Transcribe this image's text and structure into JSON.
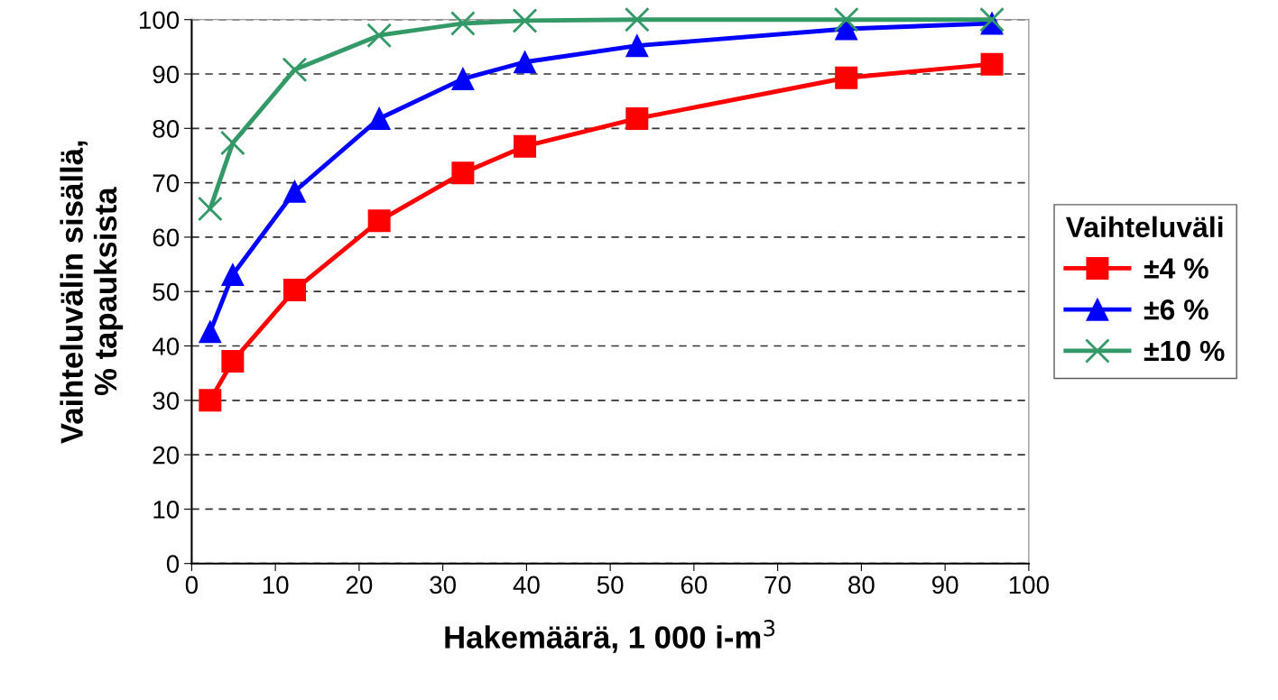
{
  "chart_data": {
    "type": "line",
    "xlabel": "Hakemäärä, 1 000 i-m$^{3}$",
    "ylabel": "Vaihteluvälin sisällä,\n% tapauksista",
    "legend_title": "Vaihteluväli",
    "x": [
      2.2,
      4.9,
      12.3,
      22.4,
      32.4,
      39.8,
      53.2,
      78.2,
      95.6
    ],
    "series": [
      {
        "name": "±4 %",
        "color": "#ff0000",
        "marker": "square",
        "values": [
          30.0,
          37.2,
          50.3,
          63.0,
          71.8,
          76.7,
          81.8,
          89.3,
          91.8
        ]
      },
      {
        "name": "±6 %",
        "color": "#0000ff",
        "marker": "triangle",
        "values": [
          42.6,
          53.1,
          68.4,
          81.8,
          89.1,
          92.2,
          95.2,
          98.3,
          99.3
        ]
      },
      {
        "name": "±10 %",
        "color": "#339966",
        "marker": "cross",
        "values": [
          65.2,
          77.3,
          90.8,
          97.1,
          99.3,
          99.8,
          100,
          100,
          100
        ]
      }
    ],
    "xlim": [
      0,
      100
    ],
    "xticks": [
      0,
      10,
      20,
      30,
      40,
      50,
      60,
      70,
      80,
      90,
      100
    ],
    "ylim": [
      0,
      100
    ],
    "yticks": [
      0,
      10,
      20,
      30,
      40,
      50,
      60,
      70,
      80,
      90,
      100
    ],
    "grid": "y",
    "legend": "right",
    "line_style": "solid"
  }
}
